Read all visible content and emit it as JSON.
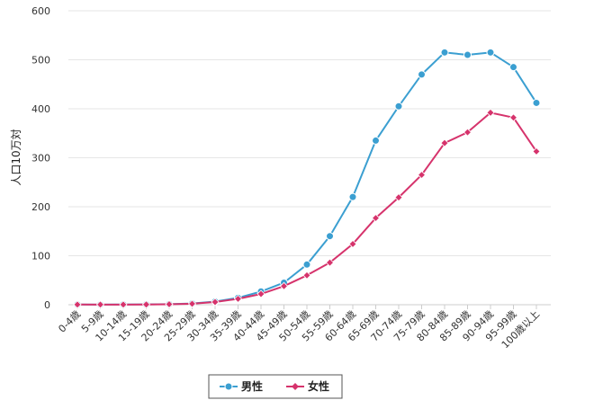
{
  "chart_data": {
    "type": "line",
    "ylabel": "人口10万対",
    "ylim": [
      0,
      600
    ],
    "yticks": [
      0,
      100,
      200,
      300,
      400,
      500,
      600
    ],
    "grid": true,
    "legend_position": "bottom-center",
    "categories": [
      "0-4歳",
      "5-9歳",
      "10-14歳",
      "15-19歳",
      "20-24歳",
      "25-29歳",
      "30-34歳",
      "35-39歳",
      "40-44歳",
      "45-49歳",
      "50-54歳",
      "55-59歳",
      "60-64歳",
      "65-69歳",
      "70-74歳",
      "75-79歳",
      "80-84歳",
      "85-89歳",
      "90-94歳",
      "95-99歳",
      "100歳以上"
    ],
    "series": [
      {
        "name": "男性",
        "color": "#3b9fd1",
        "marker": "circle",
        "values": [
          0.5,
          0.3,
          0.4,
          0.6,
          1.2,
          2.5,
          6.5,
          14,
          27,
          45,
          82,
          140,
          220,
          335,
          405,
          470,
          515,
          510,
          515,
          485,
          412
        ]
      },
      {
        "name": "女性",
        "color": "#d6336c",
        "marker": "diamond",
        "values": [
          0.4,
          0.3,
          0.3,
          0.5,
          1.0,
          2.0,
          5.5,
          12,
          22,
          38,
          60,
          86,
          124,
          177,
          219,
          265,
          330,
          352,
          392,
          382,
          313
        ]
      }
    ]
  }
}
